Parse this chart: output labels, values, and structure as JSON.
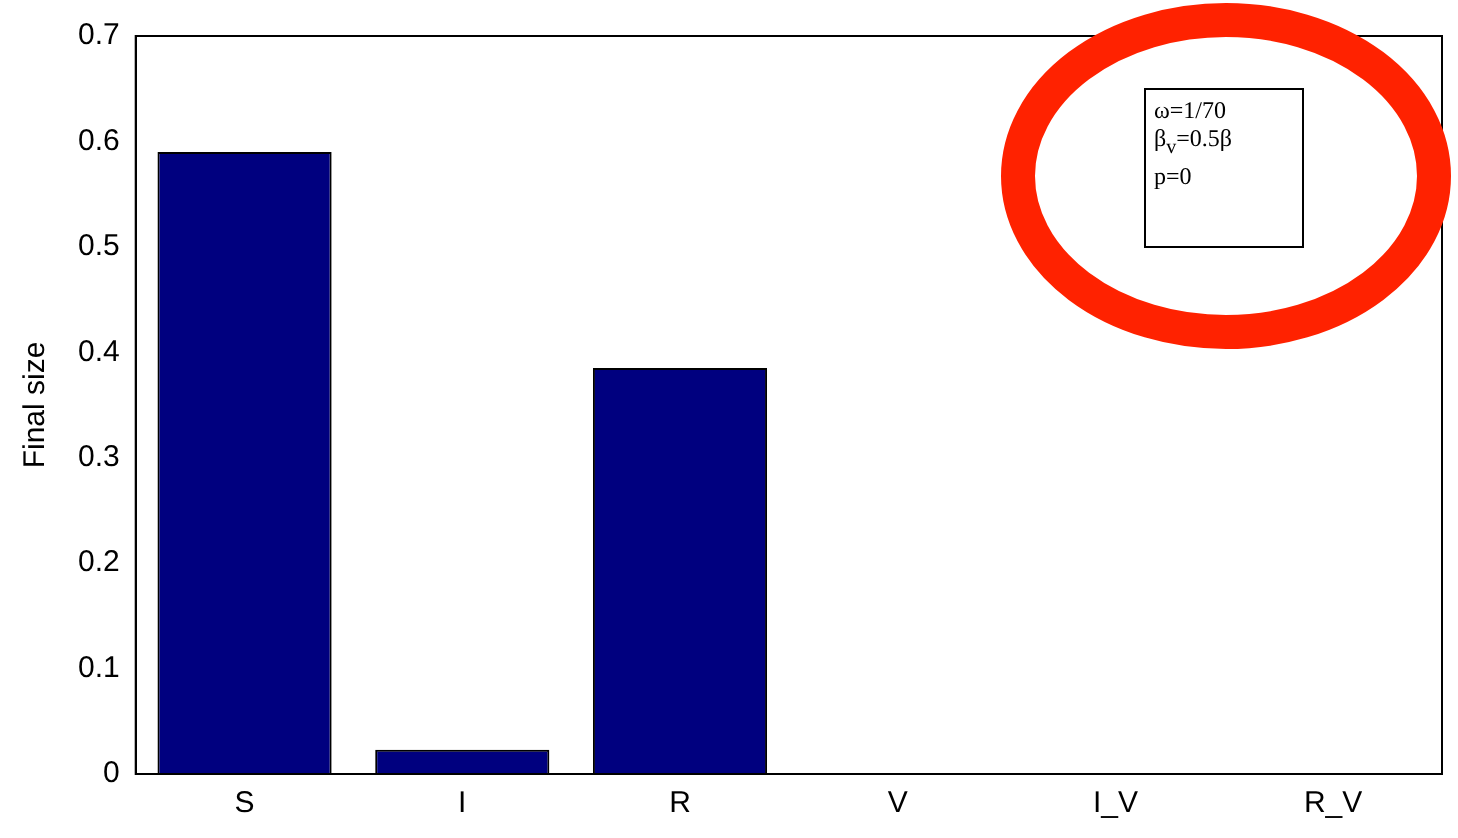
{
  "chart_data": {
    "type": "bar",
    "categories": [
      "S",
      "I",
      "R",
      "V",
      "I_V",
      "R_V"
    ],
    "values": [
      0.59,
      0.023,
      0.385,
      0,
      0,
      0
    ],
    "color": "#00007f",
    "ylabel": "Final size",
    "ylim": [
      0,
      0.7
    ],
    "yticks": [
      0,
      0.1,
      0.2,
      0.3,
      0.4,
      0.5,
      0.6,
      0.7
    ],
    "grid": false,
    "legend": false,
    "annotations": [
      "ω=1/70",
      "β$_{v}$=0.5β",
      "p=0"
    ]
  }
}
